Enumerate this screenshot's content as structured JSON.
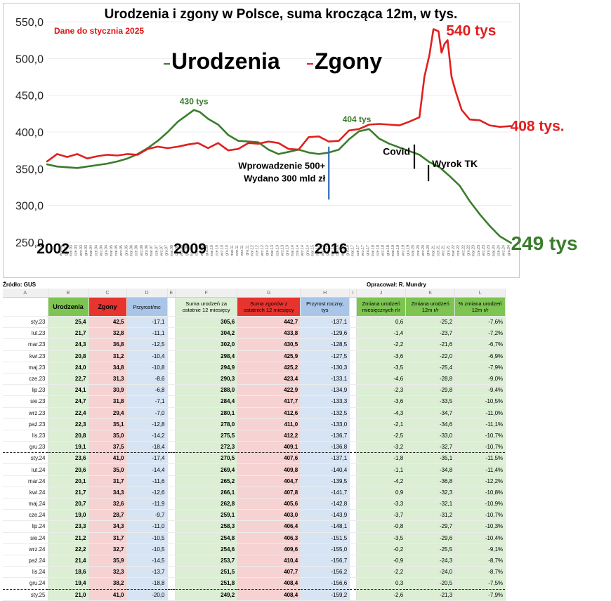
{
  "chart_data": {
    "type": "line",
    "title": "Urodzenia i zgony w Polsce, suma krocząca 12m, w tys.",
    "subtitle": "Dane do stycznia 2025",
    "ylim": [
      250,
      550
    ],
    "yticks": [
      "550,0",
      "500,0",
      "450,0",
      "400,0",
      "350,0",
      "300,0",
      "250,0"
    ],
    "xlim": [
      2002.0,
      2025.1
    ],
    "year_labels": [
      {
        "label": "2002",
        "x": 2002.3
      },
      {
        "label": "2009",
        "x": 2009.1
      },
      {
        "label": "2016",
        "x": 2016.1
      }
    ],
    "x_month_ticks": [
      "wrz.02",
      "gru.02",
      "mar.03",
      "cze.03",
      "wrz.03",
      "gru.03",
      "mar.04",
      "cze.04",
      "wrz.04",
      "gru.04",
      "mar.05",
      "cze.05",
      "wrz.05",
      "gru.05",
      "mar.06",
      "cze.06",
      "wrz.06",
      "gru.06",
      "mar.07",
      "cze.07",
      "wrz.07",
      "gru.07",
      "mar.08",
      "cze.08",
      "wrz.08",
      "gru.08",
      "mar.09",
      "cze.09",
      "wrz.09",
      "gru.09",
      "mar.10",
      "cze.10",
      "wrz.10",
      "gru.10",
      "mar.11",
      "cze.11",
      "wrz.11",
      "gru.11",
      "mar.12",
      "cze.12",
      "wrz.12",
      "gru.12",
      "mar.13",
      "cze.13",
      "wrz.13",
      "gru.13",
      "mar.14",
      "cze.14",
      "wrz.14",
      "gru.14",
      "mar.15",
      "cze.15",
      "wrz.15",
      "gru.15",
      "mar.16",
      "cze.16",
      "wrz.16",
      "gru.16",
      "mar.17",
      "cze.17",
      "wrz.17",
      "gru.17",
      "mar.18",
      "cze.18",
      "wrz.18",
      "gru.18",
      "mar.19",
      "cze.19",
      "wrz.19",
      "gru.19",
      "mar.20",
      "cze.20",
      "wrz.20",
      "gru.20",
      "mar.21",
      "cze.21",
      "wrz.21",
      "gru.21",
      "mar.22",
      "cze.22",
      "wrz.22",
      "gru.22",
      "mar.23",
      "cze.23",
      "wrz.23",
      "gru.23",
      "mar.24",
      "cze.24",
      "wrz.24",
      "gru.24"
    ],
    "legend": [
      {
        "name": "Urodzenia",
        "color": "#3a7d2c"
      },
      {
        "name": "Zgony",
        "color": "#e01f1f"
      }
    ],
    "series": [
      {
        "name": "Urodzenia",
        "color": "#3a7d2c",
        "points": [
          [
            2002.0,
            356
          ],
          [
            2002.5,
            353
          ],
          [
            2003.0,
            352
          ],
          [
            2003.5,
            351
          ],
          [
            2004.0,
            353
          ],
          [
            2004.5,
            355
          ],
          [
            2005.0,
            357
          ],
          [
            2005.5,
            360
          ],
          [
            2006.0,
            364
          ],
          [
            2006.5,
            370
          ],
          [
            2007.0,
            378
          ],
          [
            2007.5,
            388
          ],
          [
            2008.0,
            400
          ],
          [
            2008.5,
            414
          ],
          [
            2009.0,
            424
          ],
          [
            2009.3,
            430
          ],
          [
            2009.6,
            427
          ],
          [
            2010.0,
            418
          ],
          [
            2010.5,
            410
          ],
          [
            2011.0,
            396
          ],
          [
            2011.5,
            388
          ],
          [
            2012.0,
            387
          ],
          [
            2012.5,
            386
          ],
          [
            2013.0,
            376
          ],
          [
            2013.5,
            370
          ],
          [
            2014.0,
            373
          ],
          [
            2014.5,
            376
          ],
          [
            2015.0,
            372
          ],
          [
            2015.5,
            370
          ],
          [
            2016.0,
            372
          ],
          [
            2016.5,
            376
          ],
          [
            2017.0,
            390
          ],
          [
            2017.5,
            401
          ],
          [
            2018.0,
            404
          ],
          [
            2018.5,
            391
          ],
          [
            2019.0,
            384
          ],
          [
            2019.5,
            379
          ],
          [
            2020.0,
            374
          ],
          [
            2020.5,
            369
          ],
          [
            2021.0,
            359
          ],
          [
            2021.5,
            352
          ],
          [
            2022.0,
            340
          ],
          [
            2022.5,
            327
          ],
          [
            2023.0,
            306
          ],
          [
            2023.5,
            288
          ],
          [
            2024.0,
            272
          ],
          [
            2024.5,
            258
          ],
          [
            2025.05,
            249
          ]
        ]
      },
      {
        "name": "Zgony",
        "color": "#e01f1f",
        "points": [
          [
            2002.0,
            360
          ],
          [
            2002.5,
            370
          ],
          [
            2003.0,
            366
          ],
          [
            2003.5,
            370
          ],
          [
            2004.0,
            364
          ],
          [
            2004.5,
            367
          ],
          [
            2005.0,
            369
          ],
          [
            2005.5,
            368
          ],
          [
            2006.0,
            370
          ],
          [
            2006.5,
            369
          ],
          [
            2007.0,
            377
          ],
          [
            2007.5,
            380
          ],
          [
            2008.0,
            378
          ],
          [
            2008.5,
            380
          ],
          [
            2009.0,
            383
          ],
          [
            2009.5,
            385
          ],
          [
            2010.0,
            378
          ],
          [
            2010.5,
            385
          ],
          [
            2011.0,
            375
          ],
          [
            2011.5,
            377
          ],
          [
            2012.0,
            385
          ],
          [
            2012.5,
            384
          ],
          [
            2013.0,
            387
          ],
          [
            2013.5,
            385
          ],
          [
            2014.0,
            377
          ],
          [
            2014.5,
            376
          ],
          [
            2015.0,
            393
          ],
          [
            2015.5,
            394
          ],
          [
            2016.0,
            387
          ],
          [
            2016.5,
            388
          ],
          [
            2017.0,
            402
          ],
          [
            2017.5,
            404
          ],
          [
            2018.0,
            410
          ],
          [
            2018.5,
            411
          ],
          [
            2019.0,
            410
          ],
          [
            2019.5,
            409
          ],
          [
            2020.0,
            414
          ],
          [
            2020.5,
            420
          ],
          [
            2020.75,
            475
          ],
          [
            2021.0,
            505
          ],
          [
            2021.2,
            540
          ],
          [
            2021.45,
            537
          ],
          [
            2021.6,
            508
          ],
          [
            2021.75,
            520
          ],
          [
            2021.9,
            525
          ],
          [
            2022.1,
            475
          ],
          [
            2022.3,
            455
          ],
          [
            2022.6,
            430
          ],
          [
            2023.0,
            417
          ],
          [
            2023.5,
            416
          ],
          [
            2024.0,
            409
          ],
          [
            2024.5,
            407
          ],
          [
            2025.05,
            408
          ]
        ]
      }
    ],
    "annotations": [
      {
        "text": "430 tys",
        "x": 2009.3,
        "y": 430,
        "color": "#3a7d2c"
      },
      {
        "text": "404 tys",
        "x": 2017.6,
        "y": 404,
        "color": "#3a7d2c"
      },
      {
        "text": "540 tys",
        "x": 2021.2,
        "y": 540,
        "color": "#e01f1f"
      },
      {
        "text": "408 tys.",
        "x": 2025.05,
        "y": 408,
        "color": "#e01f1f"
      },
      {
        "text": "249 tys",
        "x": 2025.05,
        "y": 249,
        "color": "#3a7d2c"
      }
    ],
    "events": [
      {
        "lines": [
          "Wprowadzenie 500+",
          "Wydano 300 mld zł"
        ],
        "x": 2016.0,
        "y_from": 308,
        "y_to": 380,
        "color": "#2e6fb5"
      },
      {
        "text": "Covid",
        "x": 2020.25,
        "y_from": 350,
        "y_to": 383,
        "color": "#000000"
      },
      {
        "text": "Wyrok TK",
        "x": 2020.95,
        "y_from": 333,
        "y_to": 355,
        "color": "#000000"
      }
    ]
  },
  "sheet": {
    "source_label": "Źródło: GUS",
    "author_label": "Opracował: R. Mundry",
    "column_letters": [
      "A",
      "B",
      "C",
      "D",
      "E",
      "F",
      "G",
      "H",
      "I",
      "J",
      "K",
      "L"
    ],
    "headers": [
      "",
      "Urodzenia",
      "Zgony",
      "Przyrost/mc",
      "",
      "Suma urodzeń za ostatnie 12 miesięcy",
      "Suma zgonów z ostatnich 12 miesięcy",
      "Przyrost roczny, tys",
      "",
      "Zmiana urodzeń miesięcznych r/r",
      "Zmiana urodzeń 12m r/r",
      "% zmiana urodzeń 12m r/r"
    ],
    "rows": [
      [
        "sty.23",
        "25,4",
        "42,5",
        "-17,1",
        "305,6",
        "442,7",
        "-137,1",
        "0,6",
        "-25,2",
        "-7,6%"
      ],
      [
        "lut.23",
        "21,7",
        "32,8",
        "-11,1",
        "304,2",
        "433,8",
        "-129,6",
        "-1,4",
        "-23,7",
        "-7,2%"
      ],
      [
        "mar.23",
        "24,3",
        "36,8",
        "-12,5",
        "302,0",
        "430,5",
        "-128,5",
        "-2,2",
        "-21,6",
        "-6,7%"
      ],
      [
        "kwi.23",
        "20,8",
        "31,2",
        "-10,4",
        "298,4",
        "425,9",
        "-127,5",
        "-3,6",
        "-22,0",
        "-6,9%"
      ],
      [
        "maj.23",
        "24,0",
        "34,8",
        "-10,8",
        "294,9",
        "425,2",
        "-130,3",
        "-3,5",
        "-25,4",
        "-7,9%"
      ],
      [
        "cze.23",
        "22,7",
        "31,3",
        "-8,6",
        "290,3",
        "423,4",
        "-133,1",
        "-4,6",
        "-28,8",
        "-9,0%"
      ],
      [
        "lip.23",
        "24,1",
        "30,9",
        "-6,8",
        "288,0",
        "422,9",
        "-134,9",
        "-2,3",
        "-29,8",
        "-9,4%"
      ],
      [
        "sie.23",
        "24,7",
        "31,8",
        "-7,1",
        "284,4",
        "417,7",
        "-133,3",
        "-3,6",
        "-33,5",
        "-10,5%"
      ],
      [
        "wrz.23",
        "22,4",
        "29,4",
        "-7,0",
        "280,1",
        "412,6",
        "-132,5",
        "-4,3",
        "-34,7",
        "-11,0%"
      ],
      [
        "paź.23",
        "22,3",
        "35,1",
        "-12,8",
        "278,0",
        "411,0",
        "-133,0",
        "-2,1",
        "-34,6",
        "-11,1%"
      ],
      [
        "lis.23",
        "20,8",
        "35,0",
        "-14,2",
        "275,5",
        "412,2",
        "-136,7",
        "-2,5",
        "-33,0",
        "-10,7%"
      ],
      [
        "gru.23",
        "19,1",
        "37,5",
        "-18,4",
        "272,3",
        "409,1",
        "-136,8",
        "-3,2",
        "-32,7",
        "-10,7%"
      ],
      [
        "sty.24",
        "23,6",
        "41,0",
        "-17,4",
        "270,5",
        "407,6",
        "-137,1",
        "-1,8",
        "-35,1",
        "-11,5%"
      ],
      [
        "lut.24",
        "20,6",
        "35,0",
        "-14,4",
        "269,4",
        "409,8",
        "-140,4",
        "-1,1",
        "-34,8",
        "-11,4%"
      ],
      [
        "mar.24",
        "20,1",
        "31,7",
        "-11,6",
        "265,2",
        "404,7",
        "-139,5",
        "-4,2",
        "-36,8",
        "-12,2%"
      ],
      [
        "kwi.24",
        "21,7",
        "34,3",
        "-12,6",
        "266,1",
        "407,8",
        "-141,7",
        "0,9",
        "-32,3",
        "-10,8%"
      ],
      [
        "maj.24",
        "20,7",
        "32,6",
        "-11,9",
        "262,8",
        "405,6",
        "-142,8",
        "-3,3",
        "-32,1",
        "-10,9%"
      ],
      [
        "cze.24",
        "19,0",
        "28,7",
        "-9,7",
        "259,1",
        "403,0",
        "-143,9",
        "-3,7",
        "-31,2",
        "-10,7%"
      ],
      [
        "lip.24",
        "23,3",
        "34,3",
        "-11,0",
        "258,3",
        "406,4",
        "-148,1",
        "-0,8",
        "-29,7",
        "-10,3%"
      ],
      [
        "sie.24",
        "21,2",
        "31,7",
        "-10,5",
        "254,8",
        "406,3",
        "-151,5",
        "-3,5",
        "-29,6",
        "-10,4%"
      ],
      [
        "wrz.24",
        "22,2",
        "32,7",
        "-10,5",
        "254,6",
        "409,6",
        "-155,0",
        "-0,2",
        "-25,5",
        "-9,1%"
      ],
      [
        "paź.24",
        "21,4",
        "35,9",
        "-14,5",
        "253,7",
        "410,4",
        "-156,7",
        "-0,9",
        "-24,3",
        "-8,7%"
      ],
      [
        "lis.24",
        "18,6",
        "32,3",
        "-13,7",
        "251,5",
        "407,7",
        "-156,2",
        "-2,2",
        "-24,0",
        "-8,7%"
      ],
      [
        "gru.24",
        "19,4",
        "38,2",
        "-18,8",
        "251,8",
        "408,4",
        "-156,6",
        "0,3",
        "-20,5",
        "-7,5%"
      ],
      [
        "sty.25",
        "21,0",
        "41,0",
        "-20,0",
        "249,2",
        "408,4",
        "-159,2",
        "-2,6",
        "-21,3",
        "-7,9%"
      ]
    ]
  }
}
